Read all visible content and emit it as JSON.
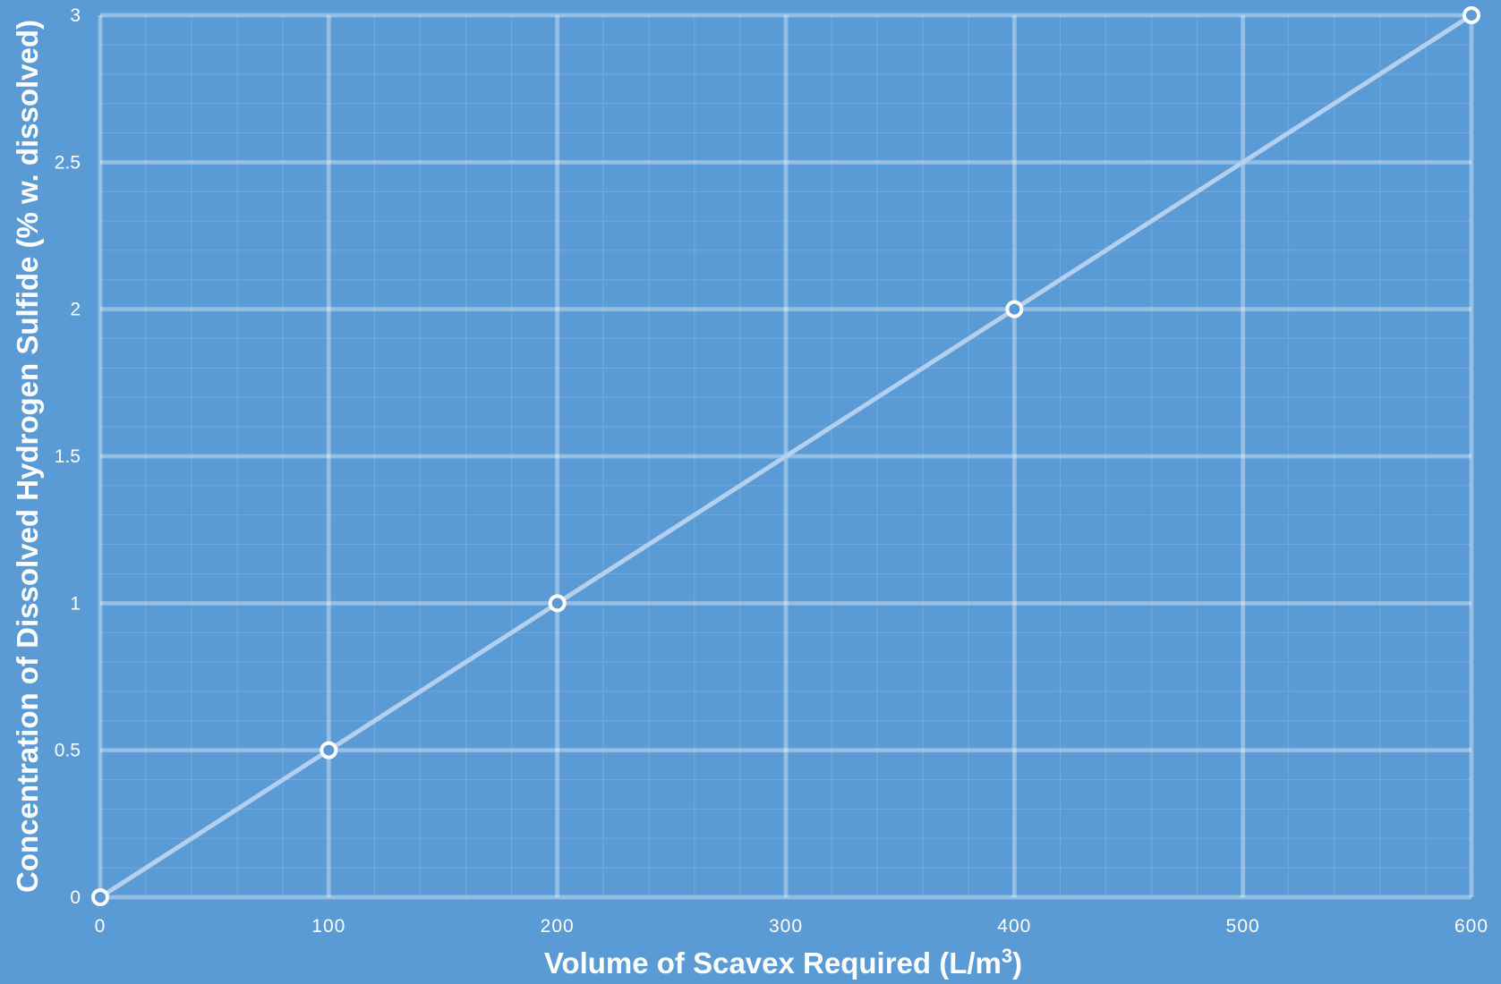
{
  "chart_data": {
    "type": "line",
    "title": "",
    "xlabel": "Volume of Scavex Required (L/m",
    "xlabel_sup": "3",
    "xlabel_tail": ")",
    "ylabel": "Concentration of Dissolved Hydrogen Sulfide (% w. dissolved)",
    "xlim": [
      0,
      600
    ],
    "ylim": [
      0,
      3
    ],
    "x_ticks": [
      "0",
      "100",
      "200",
      "300",
      "400",
      "500",
      "600"
    ],
    "y_ticks": [
      "0",
      "0.5",
      "1",
      "1.5",
      "2",
      "2.5",
      "3"
    ],
    "grid": true,
    "legend": "none",
    "series": [
      {
        "x": [
          0,
          100,
          200,
          400,
          600
        ],
        "y": [
          0,
          0.5,
          1,
          2,
          3
        ]
      }
    ],
    "colors": {
      "background": "#5b9bd5",
      "line": "#b4d0ef",
      "marker_stroke": "#ffffff",
      "text": "#ffffff"
    }
  }
}
